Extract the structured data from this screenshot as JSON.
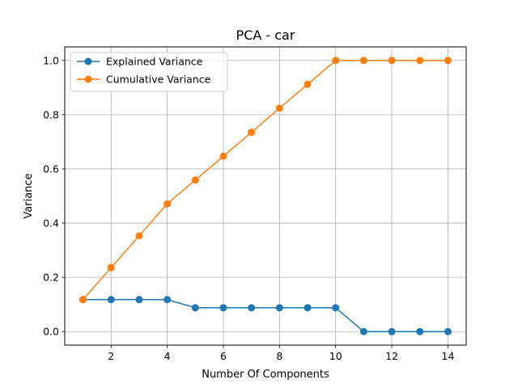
{
  "chart_data": {
    "type": "line",
    "title": "PCA - car",
    "xlabel": "Number Of Components",
    "ylabel": "Variance",
    "x": [
      1,
      2,
      3,
      4,
      5,
      6,
      7,
      8,
      9,
      10,
      11,
      12,
      13,
      14
    ],
    "xlim": [
      0.35,
      14.65
    ],
    "ylim": [
      -0.05,
      1.05
    ],
    "xticks": [
      2,
      4,
      6,
      8,
      10,
      12,
      14
    ],
    "yticks": [
      0.0,
      0.2,
      0.4,
      0.6,
      0.8,
      1.0
    ],
    "xtick_labels": [
      "2",
      "4",
      "6",
      "8",
      "10",
      "12",
      "14"
    ],
    "ytick_labels": [
      "0.0",
      "0.2",
      "0.4",
      "0.6",
      "0.8",
      "1.0"
    ],
    "grid": true,
    "legend_position": "top-left",
    "series": [
      {
        "name": "Explained Variance",
        "color": "#1f77b4",
        "values": [
          0.118,
          0.118,
          0.118,
          0.118,
          0.088,
          0.088,
          0.088,
          0.088,
          0.088,
          0.088,
          0.0,
          0.0,
          0.0,
          0.0
        ]
      },
      {
        "name": "Cumulative Variance",
        "color": "#ff7f0e",
        "values": [
          0.118,
          0.236,
          0.353,
          0.471,
          0.559,
          0.647,
          0.735,
          0.824,
          0.912,
          1.0,
          1.0,
          1.0,
          1.0,
          1.0
        ]
      }
    ]
  }
}
